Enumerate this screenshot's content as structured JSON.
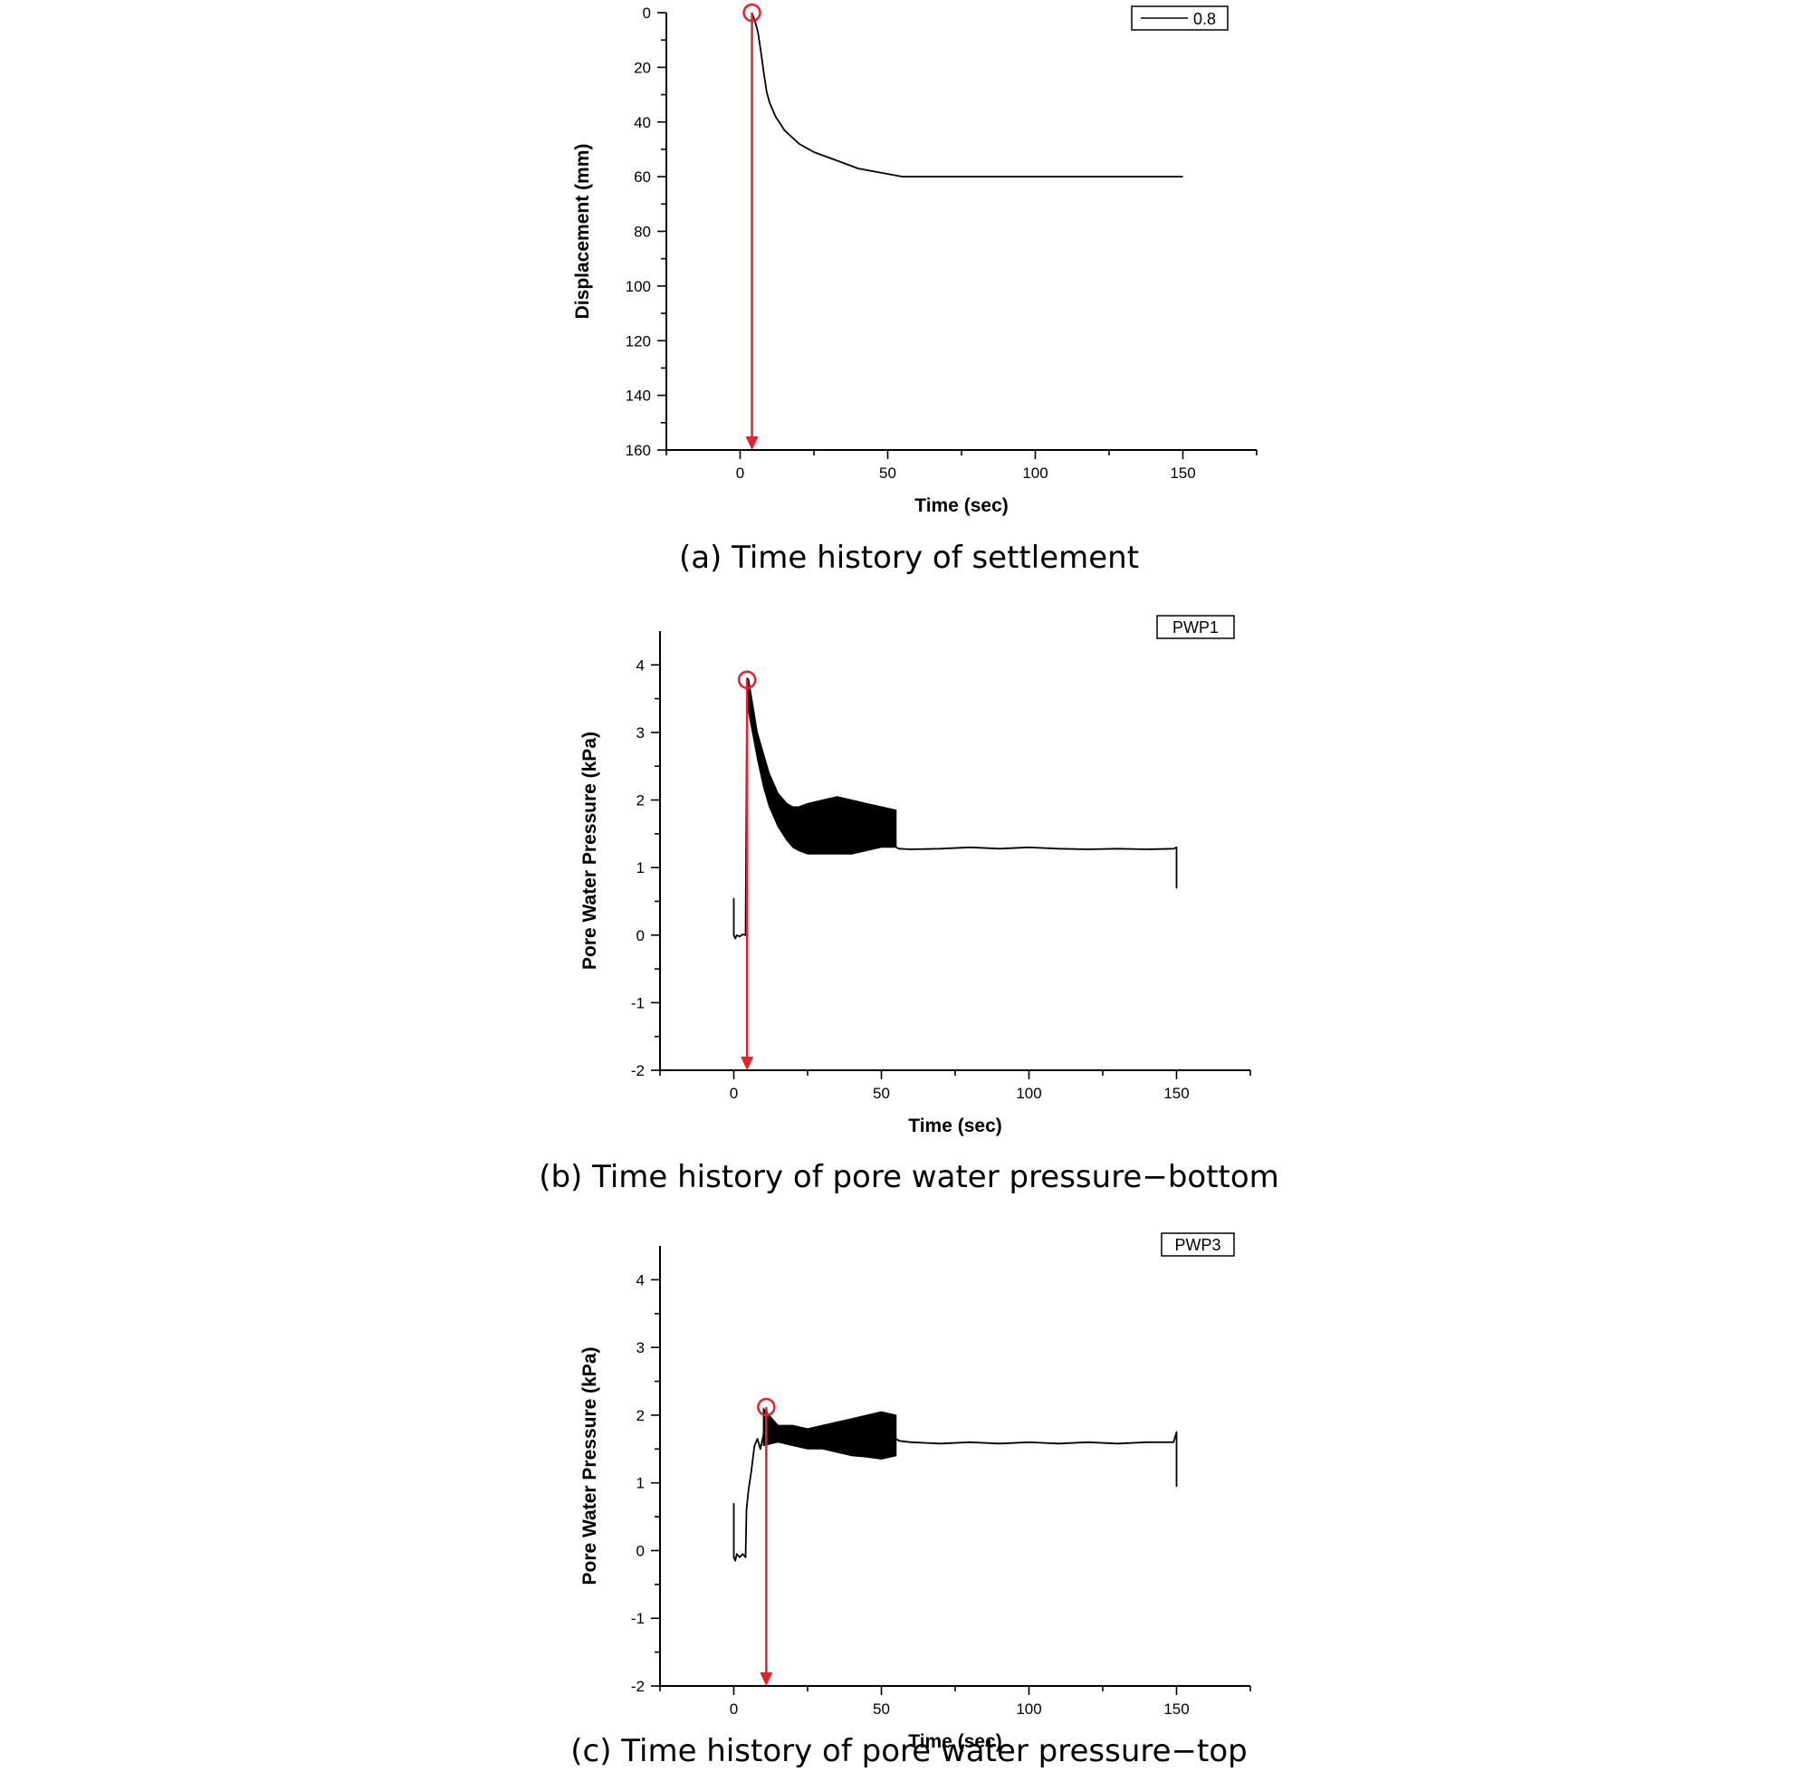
{
  "chart_data": [
    {
      "type": "line",
      "caption": "(a) Time history of settlement",
      "xlabel": "Time (sec)",
      "ylabel": "Displacement (mm)",
      "xlim": [
        -25,
        175
      ],
      "ylim": [
        0,
        160
      ],
      "y_inverted": true,
      "xticks": [
        0,
        50,
        100,
        150
      ],
      "yticks": [
        0,
        20,
        40,
        60,
        80,
        100,
        120,
        140,
        160
      ],
      "grid": false,
      "legend_position": "top-right",
      "legend_style": "line",
      "series": [
        {
          "name": "0.8",
          "color": "#000000",
          "x": [
            4,
            5,
            6,
            7,
            8,
            9,
            10,
            12,
            15,
            20,
            25,
            30,
            35,
            40,
            45,
            50,
            55,
            60,
            80,
            100,
            120,
            150
          ],
          "y": [
            0,
            3,
            7,
            14,
            22,
            29,
            33,
            38,
            43,
            48,
            51,
            53,
            55,
            57,
            58,
            59,
            60,
            60,
            60,
            60,
            60,
            60
          ]
        }
      ],
      "annotations": [
        {
          "type": "circle-marker",
          "x": 4,
          "y": 0,
          "color": "#e8202a"
        },
        {
          "type": "arrow",
          "x": 4,
          "from_y": 0,
          "to_y": 160,
          "color": "#e8202a"
        }
      ]
    },
    {
      "type": "line",
      "caption": "(b) Time history of pore water pressure−bottom",
      "xlabel": "Time (sec)",
      "ylabel": "Pore Water Pressure (kPa)",
      "xlim": [
        -25,
        175
      ],
      "ylim": [
        -2,
        4.5
      ],
      "xticks": [
        0,
        50,
        100,
        150
      ],
      "yticks": [
        -2,
        -1,
        0,
        1,
        2,
        3,
        4
      ],
      "grid": false,
      "legend_position": "top-right",
      "legend_style": "box",
      "series": [
        {
          "name": "PWP1",
          "color": "#000000",
          "x": [
            0,
            0,
            0.5,
            1,
            2,
            3,
            4,
            4.5,
            5,
            6,
            8,
            10,
            12,
            15,
            18,
            20,
            25,
            30,
            35,
            40,
            45,
            50,
            54,
            55,
            56,
            60,
            70,
            80,
            90,
            100,
            110,
            120,
            130,
            140,
            149,
            150,
            150,
            150
          ],
          "y": [
            0.55,
            0,
            -0.05,
            0,
            -0.02,
            0.01,
            0,
            3.8,
            3.5,
            3.1,
            2.8,
            2.5,
            2.2,
            1.9,
            1.7,
            1.6,
            1.55,
            1.6,
            1.6,
            1.6,
            1.6,
            1.55,
            1.5,
            1.3,
            1.28,
            1.27,
            1.28,
            1.3,
            1.28,
            1.3,
            1.28,
            1.27,
            1.28,
            1.27,
            1.28,
            1.3,
            0.7,
            1.3
          ],
          "band": {
            "x": [
              5,
              8,
              10,
              12,
              15,
              18,
              20,
              22,
              25,
              30,
              35,
              40,
              45,
              50,
              55
            ],
            "lower": [
              3.3,
              2.6,
              2.2,
              1.9,
              1.6,
              1.4,
              1.3,
              1.25,
              1.2,
              1.2,
              1.2,
              1.2,
              1.25,
              1.3,
              1.3
            ],
            "upper": [
              3.8,
              3.0,
              2.7,
              2.4,
              2.1,
              1.95,
              1.9,
              1.9,
              1.95,
              2.0,
              2.05,
              2.0,
              1.95,
              1.9,
              1.85
            ]
          }
        }
      ],
      "annotations": [
        {
          "type": "circle-marker",
          "x": 4.5,
          "y": 3.78,
          "color": "#e8202a"
        },
        {
          "type": "arrow",
          "x": 4.5,
          "from_y": 3.78,
          "to_y": -2,
          "color": "#e8202a"
        }
      ]
    },
    {
      "type": "line",
      "caption": "(c) Time history of pore water pressure−top",
      "xlabel": "Time (sec)",
      "ylabel": "Pore Water Pressure (kPa)",
      "xlim": [
        -25,
        175
      ],
      "ylim": [
        -2,
        4.5
      ],
      "xticks": [
        0,
        50,
        100,
        150
      ],
      "yticks": [
        -2,
        -1,
        0,
        1,
        2,
        3,
        4
      ],
      "grid": false,
      "legend_position": "top-right",
      "legend_style": "box",
      "series": [
        {
          "name": "PWP3",
          "color": "#000000",
          "x": [
            0,
            0,
            0.5,
            1,
            2,
            3,
            4,
            4.3,
            5,
            6,
            7,
            8,
            9,
            10,
            11,
            12,
            15,
            20,
            25,
            30,
            35,
            40,
            45,
            50,
            54,
            55,
            56,
            60,
            70,
            80,
            90,
            100,
            110,
            120,
            130,
            140,
            149,
            150,
            150,
            150
          ],
          "y": [
            0.7,
            -0.1,
            -0.15,
            -0.05,
            -0.1,
            -0.05,
            -0.1,
            0.6,
            0.9,
            1.2,
            1.55,
            1.65,
            1.5,
            1.7,
            2.1,
            1.8,
            1.75,
            1.7,
            1.65,
            1.7,
            1.7,
            1.72,
            1.73,
            1.7,
            1.7,
            1.65,
            1.62,
            1.6,
            1.58,
            1.6,
            1.58,
            1.6,
            1.58,
            1.6,
            1.58,
            1.6,
            1.6,
            1.75,
            0.95,
            1.6
          ],
          "band": {
            "x": [
              10,
              15,
              20,
              25,
              30,
              35,
              40,
              45,
              50,
              55
            ],
            "lower": [
              1.55,
              1.6,
              1.55,
              1.5,
              1.5,
              1.45,
              1.4,
              1.38,
              1.35,
              1.4
            ],
            "upper": [
              2.1,
              1.85,
              1.85,
              1.8,
              1.85,
              1.9,
              1.95,
              2.0,
              2.05,
              2.0
            ]
          }
        }
      ],
      "annotations": [
        {
          "type": "circle-marker",
          "x": 11,
          "y": 2.12,
          "color": "#e8202a"
        },
        {
          "type": "arrow",
          "x": 11,
          "from_y": 2.12,
          "to_y": -2,
          "color": "#e8202a"
        }
      ]
    }
  ]
}
